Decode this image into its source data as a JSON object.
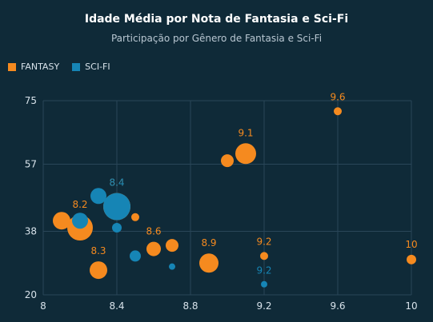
{
  "chart_data": {
    "type": "scatter",
    "title": "Idade Média por Nota de Fantasia e Sci-Fi",
    "subtitle": "Participação por Gênero de Fantasia e Sci-Fi",
    "xlabel": "",
    "ylabel": "",
    "xlim": [
      8,
      10
    ],
    "ylim": [
      20,
      75
    ],
    "xticks": [
      "8",
      "8.4",
      "8.8",
      "9.2",
      "9.6",
      "10"
    ],
    "yticks": [
      "20",
      "38",
      "57",
      "75"
    ],
    "grid": true,
    "legend_position": "top-left",
    "colors": {
      "FANTASY": "#f58a1f",
      "SCI-FI": "#1685b5"
    },
    "series": [
      {
        "name": "FANTASY",
        "points": [
          {
            "x": 8.1,
            "y": 41,
            "size": 11,
            "label": ""
          },
          {
            "x": 8.2,
            "y": 39,
            "size": 16,
            "label": "8.2"
          },
          {
            "x": 8.3,
            "y": 27,
            "size": 11,
            "label": "8.3"
          },
          {
            "x": 8.4,
            "y": 45,
            "size": 17,
            "label": "8.4"
          },
          {
            "x": 8.5,
            "y": 42,
            "size": 5,
            "label": ""
          },
          {
            "x": 8.6,
            "y": 33,
            "size": 9,
            "label": "8.6"
          },
          {
            "x": 8.7,
            "y": 34,
            "size": 8,
            "label": ""
          },
          {
            "x": 8.9,
            "y": 29,
            "size": 12,
            "label": "8.9"
          },
          {
            "x": 9.0,
            "y": 58,
            "size": 8,
            "label": ""
          },
          {
            "x": 9.1,
            "y": 60,
            "size": 13,
            "label": "9.1"
          },
          {
            "x": 9.2,
            "y": 31,
            "size": 5,
            "label": "9.2"
          },
          {
            "x": 9.6,
            "y": 72,
            "size": 5,
            "label": "9.6"
          },
          {
            "x": 10.0,
            "y": 30,
            "size": 6,
            "label": "10"
          }
        ]
      },
      {
        "name": "SCI-FI",
        "points": [
          {
            "x": 8.2,
            "y": 41,
            "size": 10,
            "label": ""
          },
          {
            "x": 8.3,
            "y": 48,
            "size": 10,
            "label": ""
          },
          {
            "x": 8.4,
            "y": 45,
            "size": 17,
            "label": "8.4"
          },
          {
            "x": 8.4,
            "y": 39,
            "size": 6,
            "label": ""
          },
          {
            "x": 8.5,
            "y": 31,
            "size": 7,
            "label": ""
          },
          {
            "x": 8.7,
            "y": 28,
            "size": 4,
            "label": ""
          },
          {
            "x": 9.2,
            "y": 23,
            "size": 4,
            "label": "9.2"
          }
        ]
      }
    ]
  }
}
